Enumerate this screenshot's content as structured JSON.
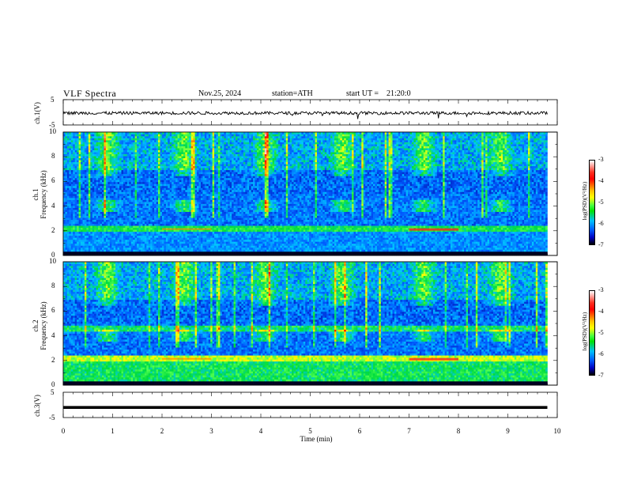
{
  "header": {
    "title": "VLF Spectra",
    "date": "Nov.25, 2024",
    "station": "station=ATH",
    "start_label": "start UT =",
    "start_time": "21:20:0"
  },
  "colors": {
    "line": "#000000",
    "background": "#ffffff"
  },
  "chart_data": [
    {
      "type": "line",
      "ylabel": "ch.1(V)",
      "ylim": [
        -5,
        5
      ],
      "yticks": [
        "5",
        "-5"
      ],
      "xlim": [
        0,
        10
      ],
      "description_series": "noisy waveform near -0.3 V",
      "y_mean": -0.3
    },
    {
      "type": "heatmap",
      "ylabel": "ch.1\nFrequency (kHz)",
      "ylabel_lines": [
        "ch.1",
        "Frequency (kHz)"
      ],
      "ylim": [
        0,
        10
      ],
      "yticks": [
        "10",
        "8",
        "6",
        "4",
        "2",
        "0"
      ],
      "xlim": [
        0,
        10
      ],
      "colorbar": {
        "label": "log(PSD)(V²/Hz)",
        "ticks": [
          "-3",
          "-4",
          "-5",
          "-6",
          "-7"
        ],
        "range": [
          -7,
          -3
        ]
      },
      "bursts_min": [
        0.9,
        2.45,
        4.1,
        5.65,
        7.3,
        8.85
      ],
      "burst_freq_khz": 4.0
    },
    {
      "type": "heatmap",
      "ylabel": "ch.2\nFrequency (kHz)",
      "ylabel_lines": [
        "ch.2",
        "Frequency (kHz)"
      ],
      "ylim": [
        0,
        10
      ],
      "yticks": [
        "10",
        "8",
        "6",
        "4",
        "2",
        "0"
      ],
      "xlim": [
        0,
        10
      ],
      "colorbar": {
        "label": "log(PSD)(V²/Hz)",
        "ticks": [
          "-3",
          "-4",
          "-5",
          "-6",
          "-7"
        ],
        "range": [
          -7,
          -3
        ]
      },
      "bursts_min": [
        0.9,
        2.45,
        4.1,
        5.65,
        7.3,
        8.85
      ],
      "burst_freq_khz": 4.0
    },
    {
      "type": "line",
      "ylabel": "ch.3(V)",
      "ylim": [
        -5,
        5
      ],
      "yticks": [
        "5",
        "-5"
      ],
      "xlim": [
        0,
        10
      ],
      "y_mean": -1.0
    }
  ],
  "xaxis": {
    "label": "Time (min)",
    "ticks": [
      "0",
      "1",
      "2",
      "3",
      "4",
      "5",
      "6",
      "7",
      "8",
      "9",
      "10"
    ],
    "data_end_min": 9.8
  }
}
